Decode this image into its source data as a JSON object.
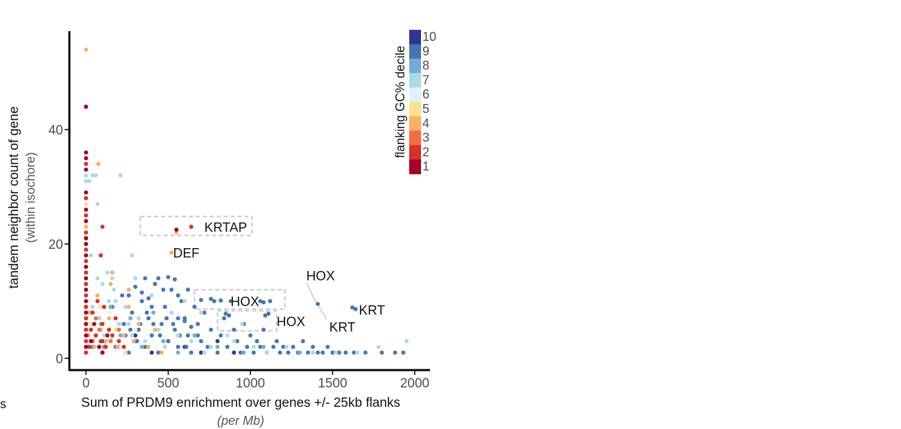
{
  "chart_data": {
    "type": "scatter",
    "xlabel": "Sum of PRDM9 enrichment over genes +/- 25kb flanks",
    "xlabel_sub": "(per Mb)",
    "ylabel": "tandem neighbor count of gene",
    "ylabel_sub": "(within isochore)",
    "xlim": [
      -70,
      2080
    ],
    "ylim": [
      -1.5,
      57
    ],
    "x_ticks": [
      0,
      500,
      1000,
      1500,
      2000
    ],
    "y_ticks": [
      0,
      20,
      40
    ],
    "grid": false,
    "legend": {
      "title": "flanking GC% decile",
      "placement": "top-right",
      "entries": [
        {
          "label": "10",
          "color": "#313695"
        },
        {
          "label": "9",
          "color": "#4575b4"
        },
        {
          "label": "8",
          "color": "#74add1"
        },
        {
          "label": "7",
          "color": "#abd9e9"
        },
        {
          "label": "6",
          "color": "#e0f3f8"
        },
        {
          "label": "5",
          "color": "#fee090"
        },
        {
          "label": "4",
          "color": "#fdae61"
        },
        {
          "label": "3",
          "color": "#f46d43"
        },
        {
          "label": "2",
          "color": "#d73027"
        },
        {
          "label": "1",
          "color": "#a50026"
        }
      ]
    },
    "annotations": [
      {
        "text": "KRTAP",
        "x": 720,
        "y": 23
      },
      {
        "text": "DEF",
        "x": 530,
        "y": 18.5
      },
      {
        "text": "HOX",
        "x": 1340,
        "y": 14.5
      },
      {
        "text": "HOX",
        "x": 880,
        "y": 10
      },
      {
        "text": "HOX",
        "x": 1160,
        "y": 6.5
      },
      {
        "text": "KRT",
        "x": 1660,
        "y": 8.5
      },
      {
        "text": "KRT",
        "x": 1480,
        "y": 5.5
      }
    ],
    "boxes": [
      {
        "x0": 330,
        "x1": 1010,
        "y0": 21.5,
        "y1": 24.8
      },
      {
        "x0": 660,
        "x1": 1210,
        "y0": 8.6,
        "y1": 12.0
      },
      {
        "x0": 800,
        "x1": 1160,
        "y0": 4.8,
        "y1": 8.3
      }
    ],
    "series": [
      {
        "decile": 1,
        "color": "#a50026",
        "points": [
          [
            0,
            2
          ],
          [
            0,
            4
          ],
          [
            0,
            6
          ],
          [
            0,
            8
          ],
          [
            0,
            10
          ],
          [
            0,
            12
          ],
          [
            0,
            14
          ],
          [
            0,
            16
          ],
          [
            0,
            18
          ],
          [
            0,
            20
          ],
          [
            0,
            21
          ],
          [
            0,
            24
          ],
          [
            0,
            26
          ],
          [
            0,
            29
          ],
          [
            0,
            33
          ],
          [
            0,
            35
          ],
          [
            0,
            36
          ],
          [
            0,
            44
          ],
          [
            30,
            3
          ],
          [
            50,
            6
          ],
          [
            80,
            2
          ],
          [
            100,
            1
          ],
          [
            130,
            4
          ],
          [
            550,
            22.5
          ]
        ]
      },
      {
        "decile": 2,
        "color": "#d73027",
        "points": [
          [
            0,
            1
          ],
          [
            0,
            3
          ],
          [
            0,
            5
          ],
          [
            0,
            7
          ],
          [
            0,
            9
          ],
          [
            0,
            11
          ],
          [
            0,
            13
          ],
          [
            0,
            15
          ],
          [
            0,
            17
          ],
          [
            0,
            19
          ],
          [
            0,
            21
          ],
          [
            0,
            22
          ],
          [
            0,
            25
          ],
          [
            0,
            28
          ],
          [
            0,
            34
          ],
          [
            20,
            2
          ],
          [
            30,
            5
          ],
          [
            40,
            8
          ],
          [
            60,
            4
          ],
          [
            70,
            10
          ],
          [
            90,
            3
          ],
          [
            90,
            18
          ],
          [
            100,
            6
          ],
          [
            110,
            9
          ],
          [
            120,
            2
          ],
          [
            140,
            5
          ],
          [
            160,
            4
          ],
          [
            180,
            7
          ],
          [
            200,
            3
          ],
          [
            230,
            2
          ],
          [
            100,
            23
          ],
          [
            640,
            23
          ]
        ]
      },
      {
        "decile": 3,
        "color": "#f46d43",
        "points": [
          [
            0,
            2
          ],
          [
            0,
            6
          ],
          [
            0,
            9
          ],
          [
            10,
            4
          ],
          [
            40,
            3
          ],
          [
            60,
            7
          ],
          [
            80,
            5
          ],
          [
            110,
            2
          ],
          [
            150,
            3
          ],
          [
            200,
            5
          ]
        ]
      },
      {
        "decile": 4,
        "color": "#fdae61",
        "points": [
          [
            0,
            5
          ],
          [
            0,
            9
          ],
          [
            0,
            13
          ],
          [
            0,
            23
          ],
          [
            0,
            54
          ],
          [
            20,
            8
          ],
          [
            50,
            2
          ],
          [
            70,
            11
          ],
          [
            90,
            5
          ],
          [
            120,
            3
          ],
          [
            140,
            7
          ],
          [
            160,
            15
          ],
          [
            190,
            2
          ],
          [
            230,
            4
          ],
          [
            260,
            9
          ],
          [
            290,
            3
          ],
          [
            320,
            6
          ],
          [
            380,
            2
          ],
          [
            420,
            5
          ],
          [
            460,
            1
          ],
          [
            520,
            18.5
          ],
          [
            550,
            22
          ],
          [
            75,
            34
          ],
          [
            260,
            12
          ],
          [
            150,
            13
          ]
        ]
      },
      {
        "decile": 5,
        "color": "#fee090",
        "points": [
          [
            0,
            3
          ],
          [
            0,
            8
          ],
          [
            0,
            16
          ],
          [
            0,
            27
          ],
          [
            30,
            6
          ],
          [
            60,
            4
          ],
          [
            90,
            9
          ],
          [
            120,
            2
          ],
          [
            180,
            5
          ],
          [
            240,
            1
          ]
        ]
      },
      {
        "decile": 6,
        "color": "#e0f3f8",
        "points": [
          [
            0,
            4
          ],
          [
            20,
            10
          ],
          [
            50,
            6
          ],
          [
            80,
            3
          ],
          [
            150,
            8
          ],
          [
            210,
            2
          ],
          [
            300,
            5
          ]
        ]
      },
      {
        "decile": 7,
        "color": "#abd9e9",
        "points": [
          [
            0,
            5
          ],
          [
            0,
            10
          ],
          [
            0,
            15
          ],
          [
            0,
            20
          ],
          [
            0,
            28
          ],
          [
            0,
            31
          ],
          [
            0,
            32
          ],
          [
            20,
            31
          ],
          [
            40,
            32
          ],
          [
            60,
            32
          ],
          [
            210,
            32
          ],
          [
            70,
            27
          ],
          [
            30,
            18
          ],
          [
            70,
            14
          ],
          [
            100,
            13
          ],
          [
            130,
            15
          ],
          [
            160,
            14
          ],
          [
            40,
            9
          ],
          [
            80,
            7
          ],
          [
            110,
            4
          ],
          [
            140,
            10
          ],
          [
            170,
            12
          ],
          [
            200,
            6
          ],
          [
            240,
            9
          ],
          [
            280,
            4
          ],
          [
            300,
            14
          ],
          [
            320,
            7
          ],
          [
            360,
            3
          ],
          [
            400,
            11
          ],
          [
            440,
            5
          ],
          [
            480,
            2
          ],
          [
            520,
            8
          ],
          [
            560,
            4
          ],
          [
            600,
            10
          ],
          [
            640,
            3
          ],
          [
            700,
            8
          ],
          [
            760,
            2
          ],
          [
            860,
            4
          ],
          [
            900,
            3
          ],
          [
            950,
            6
          ],
          [
            1020,
            2
          ],
          [
            1100,
            1
          ],
          [
            1220,
            2
          ],
          [
            1380,
            1
          ],
          [
            1520,
            1
          ],
          [
            1650,
            1
          ],
          [
            1780,
            2
          ],
          [
            1950,
            3
          ],
          [
            280,
            18
          ],
          [
            720,
            1
          ],
          [
            180,
            10
          ],
          [
            260,
            6
          ]
        ]
      },
      {
        "decile": 8,
        "color": "#74add1",
        "points": [
          [
            30,
            3
          ],
          [
            90,
            6
          ],
          [
            150,
            9
          ],
          [
            210,
            4
          ],
          [
            270,
            7
          ],
          [
            340,
            2
          ],
          [
            410,
            8
          ],
          [
            470,
            3
          ],
          [
            560,
            1
          ],
          [
            660,
            4
          ],
          [
            800,
            2
          ],
          [
            960,
            1
          ],
          [
            1080,
            2
          ],
          [
            1300,
            1
          ]
        ]
      },
      {
        "decile": 9,
        "color": "#4575b4",
        "points": [
          [
            40,
            2
          ],
          [
            60,
            4
          ],
          [
            80,
            7
          ],
          [
            100,
            1
          ],
          [
            120,
            3
          ],
          [
            140,
            5
          ],
          [
            160,
            9
          ],
          [
            180,
            2
          ],
          [
            200,
            6
          ],
          [
            220,
            11
          ],
          [
            240,
            4
          ],
          [
            260,
            1
          ],
          [
            280,
            8
          ],
          [
            300,
            3
          ],
          [
            320,
            5
          ],
          [
            340,
            10
          ],
          [
            360,
            2
          ],
          [
            380,
            7
          ],
          [
            400,
            4
          ],
          [
            420,
            13
          ],
          [
            440,
            1
          ],
          [
            460,
            6
          ],
          [
            480,
            9
          ],
          [
            500,
            3
          ],
          [
            520,
            12
          ],
          [
            540,
            5
          ],
          [
            560,
            2
          ],
          [
            580,
            10
          ],
          [
            600,
            7
          ],
          [
            620,
            4
          ],
          [
            640,
            1
          ],
          [
            660,
            9
          ],
          [
            680,
            6
          ],
          [
            700,
            3
          ],
          [
            720,
            8
          ],
          [
            740,
            2
          ],
          [
            760,
            5
          ],
          [
            780,
            10
          ],
          [
            800,
            1
          ],
          [
            820,
            4
          ],
          [
            840,
            7
          ],
          [
            860,
            2
          ],
          [
            880,
            10
          ],
          [
            900,
            5
          ],
          [
            920,
            3
          ],
          [
            940,
            1
          ],
          [
            960,
            6
          ],
          [
            980,
            2
          ],
          [
            1000,
            4
          ],
          [
            1020,
            1
          ],
          [
            1040,
            3
          ],
          [
            1060,
            2
          ],
          [
            1080,
            5
          ],
          [
            1100,
            1
          ],
          [
            1120,
            10
          ],
          [
            1140,
            2
          ],
          [
            1160,
            3
          ],
          [
            1180,
            1
          ],
          [
            1200,
            2
          ],
          [
            1230,
            1
          ],
          [
            1260,
            2
          ],
          [
            1290,
            1
          ],
          [
            1320,
            3
          ],
          [
            1350,
            1
          ],
          [
            1380,
            2
          ],
          [
            1410,
            1
          ],
          [
            1440,
            1
          ],
          [
            1470,
            2
          ],
          [
            1500,
            1
          ],
          [
            1540,
            1
          ],
          [
            1580,
            1
          ],
          [
            1630,
            1
          ],
          [
            1700,
            1
          ],
          [
            1800,
            1
          ],
          [
            1880,
            1
          ],
          [
            1930,
            1
          ],
          [
            1410,
            9.5
          ],
          [
            1640,
            8.6
          ],
          [
            1620,
            8.9
          ],
          [
            850,
            7.8
          ],
          [
            870,
            7.5
          ],
          [
            1090,
            7.5
          ],
          [
            1110,
            7.8
          ],
          [
            700,
            10.2
          ],
          [
            760,
            10.4
          ],
          [
            820,
            10.1
          ],
          [
            1060,
            10
          ],
          [
            1080,
            9.8
          ],
          [
            360,
            14
          ],
          [
            440,
            14
          ],
          [
            500,
            14.2
          ],
          [
            540,
            13.8
          ],
          [
            560,
            11
          ],
          [
            620,
            12
          ],
          [
            470,
            12
          ],
          [
            400,
            9
          ],
          [
            260,
            11
          ],
          [
            300,
            12.5
          ],
          [
            340,
            11.5
          ],
          [
            380,
            10.5
          ],
          [
            560,
            7
          ],
          [
            600,
            6.5
          ],
          [
            640,
            5.5
          ],
          [
            680,
            4
          ],
          [
            230,
            6
          ],
          [
            270,
            5
          ],
          [
            310,
            3
          ],
          [
            330,
            6
          ],
          [
            370,
            8
          ],
          [
            410,
            6
          ],
          [
            450,
            4
          ],
          [
            490,
            7
          ],
          [
            530,
            6
          ],
          [
            570,
            4
          ],
          [
            610,
            2
          ]
        ]
      },
      {
        "decile": 10,
        "color": "#313695",
        "points": [
          [
            100,
            3
          ],
          [
            200,
            2
          ],
          [
            300,
            4
          ],
          [
            400,
            1
          ],
          [
            500,
            3
          ],
          [
            600,
            2
          ],
          [
            700,
            1
          ],
          [
            800,
            3
          ],
          [
            900,
            1
          ]
        ]
      }
    ]
  }
}
